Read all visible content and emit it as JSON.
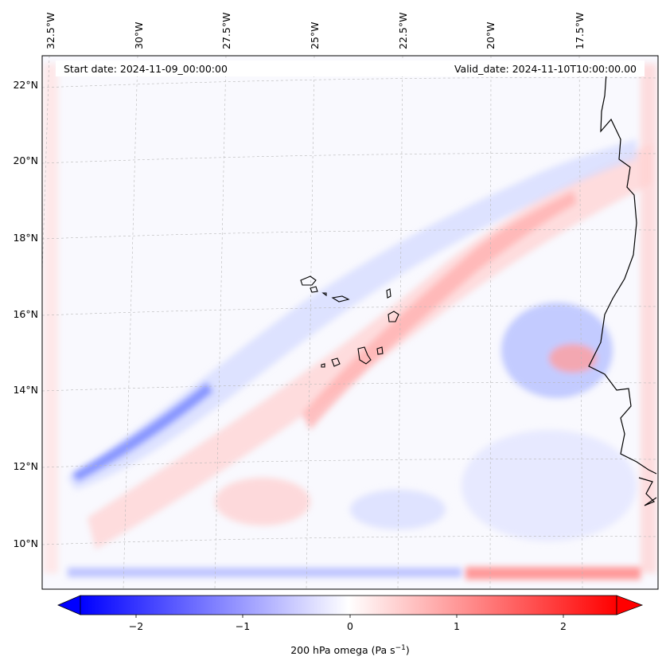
{
  "map": {
    "start_label": "Start date: 2024-11-09_00:00:00",
    "valid_label": "Valid_date: 2024-11-10T10:00:00.00",
    "lon_labels": [
      "32.5°W",
      "30°W",
      "27.5°W",
      "25°W",
      "22.5°W",
      "20°W",
      "17.5°W"
    ],
    "lat_labels": [
      "22°N",
      "20°N",
      "18°N",
      "16°N",
      "14°N",
      "12°N",
      "10°N"
    ]
  },
  "colorbar": {
    "ticks": [
      "−2",
      "−1",
      "0",
      "1",
      "2"
    ],
    "label": "200 hPa omega (Pa s",
    "label_sup": "−1",
    "label_end": ")",
    "range": [
      -2.75,
      2.75
    ],
    "colors": {
      "min": "#0000ff",
      "zero": "#ffffff",
      "max": "#ff0000"
    }
  }
}
